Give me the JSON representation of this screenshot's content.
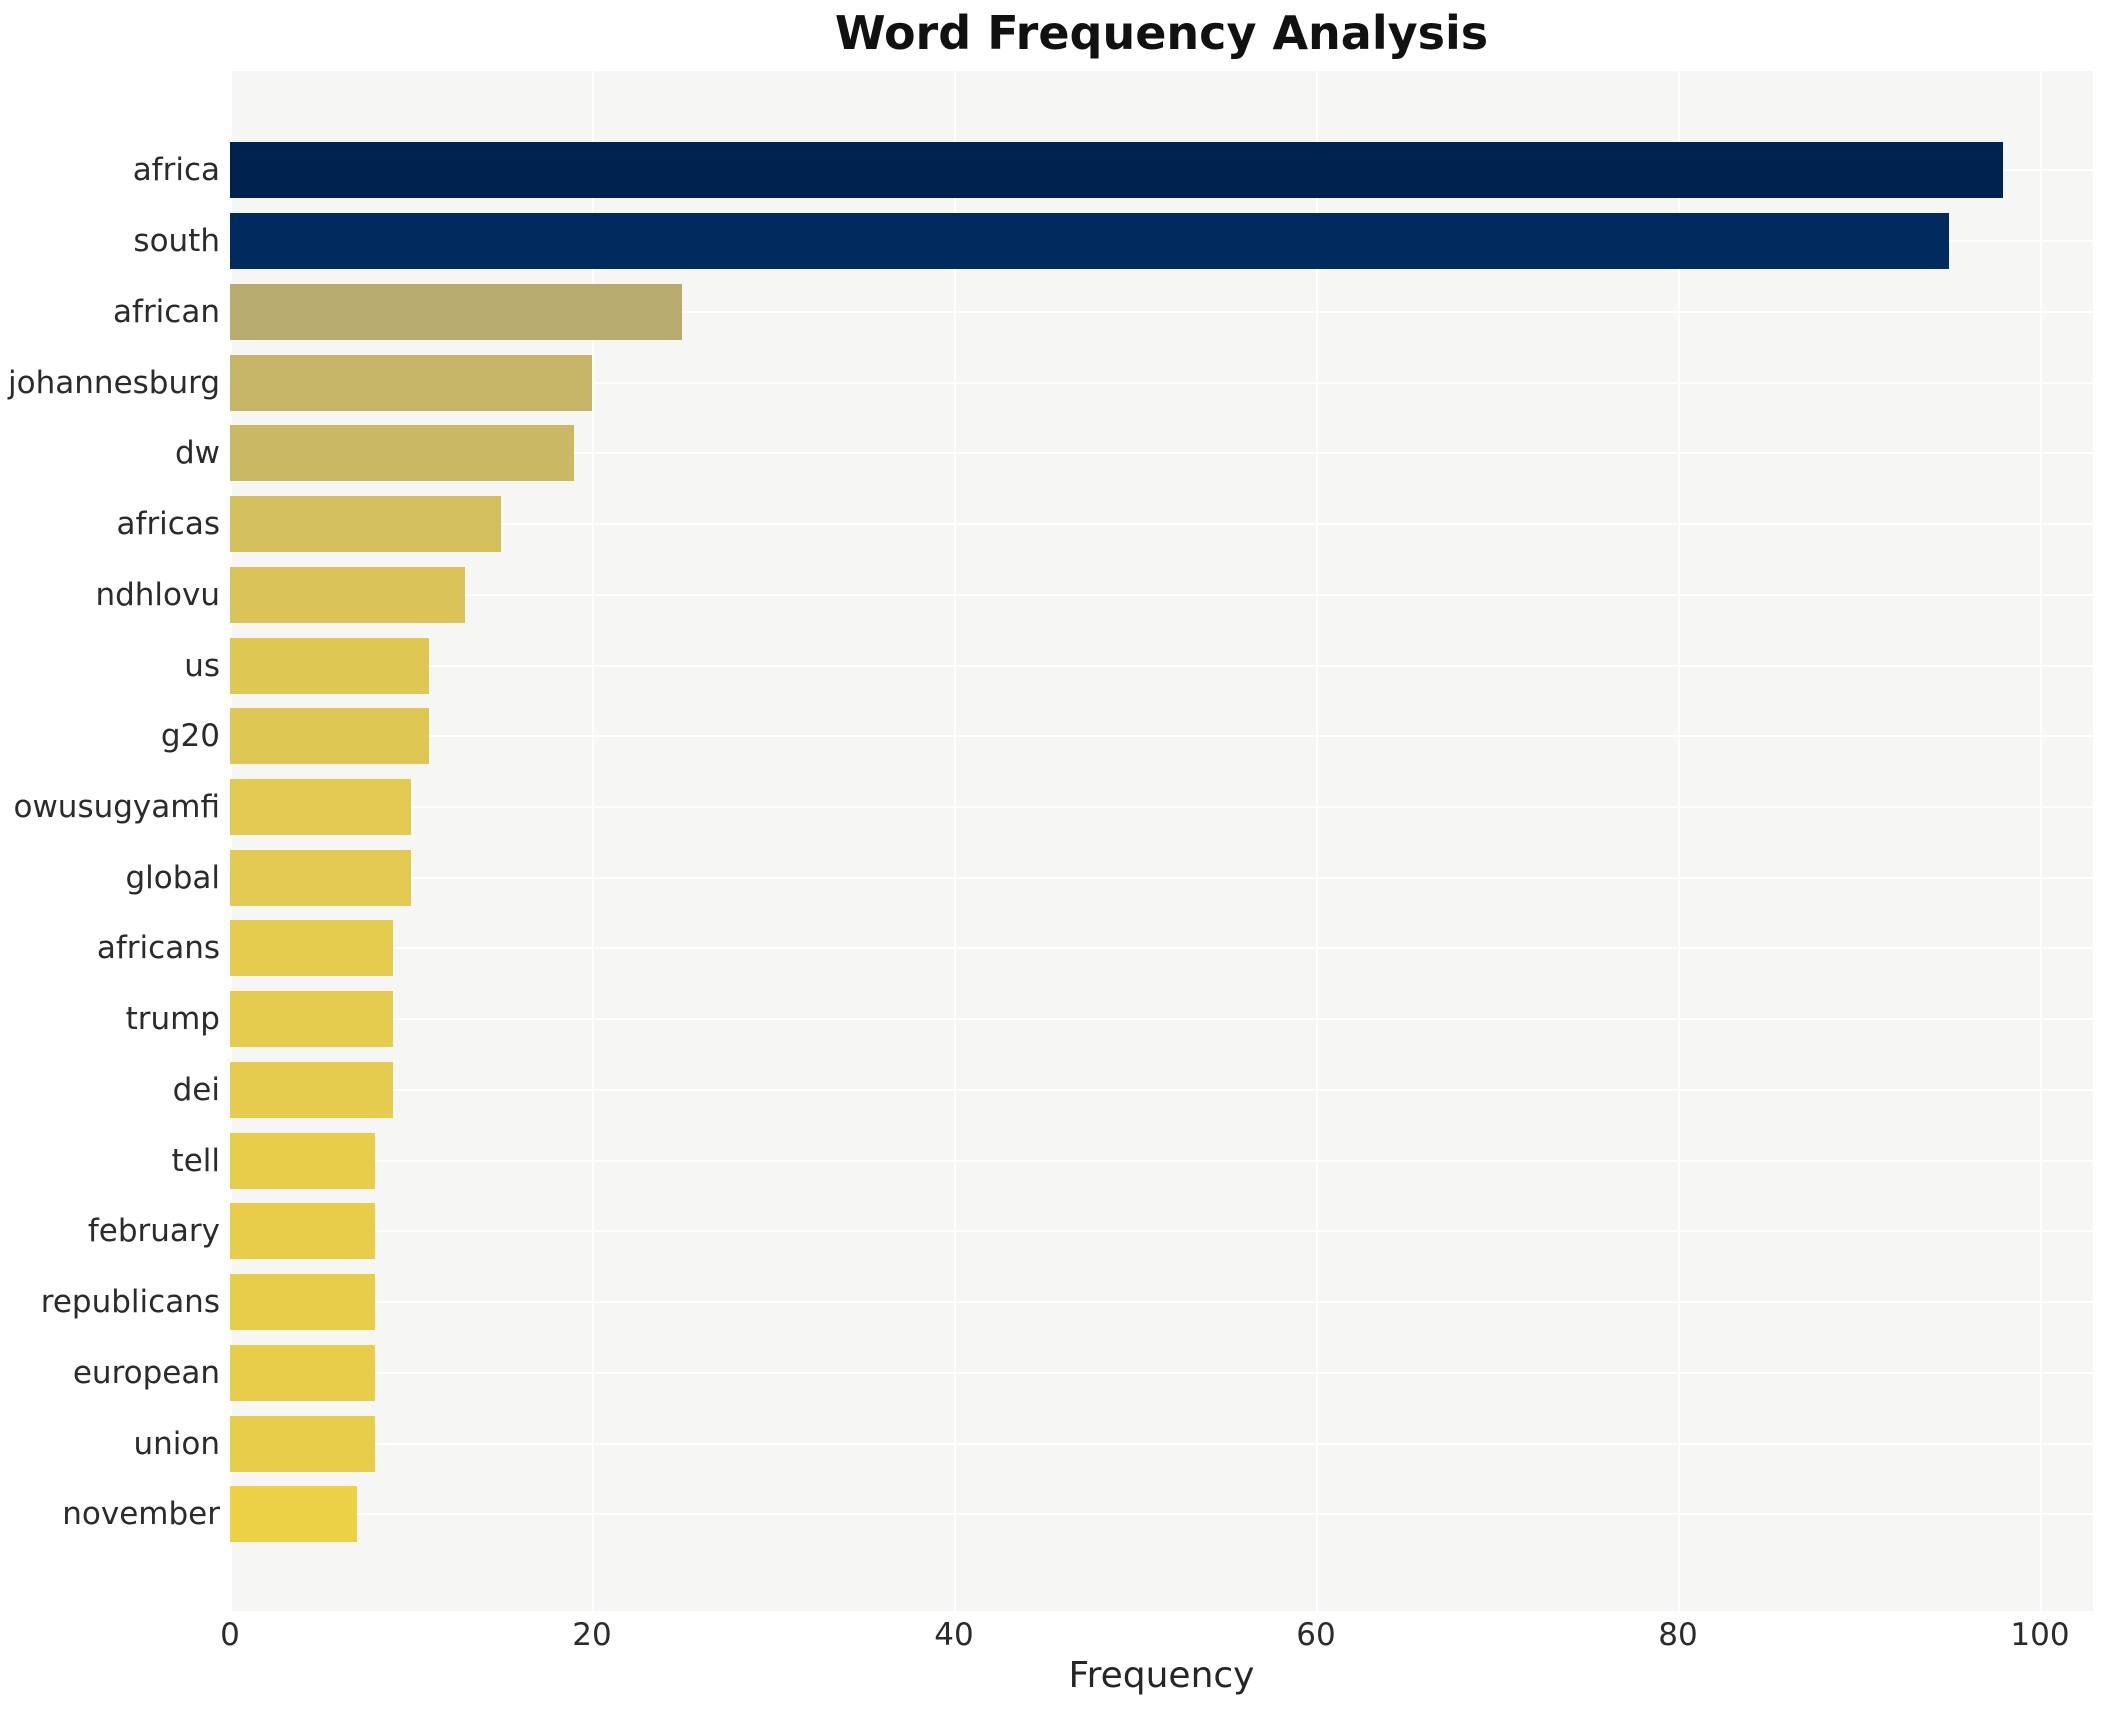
{
  "title": "Word Frequency Analysis",
  "xlabel": "Frequency",
  "chart_data": {
    "type": "bar",
    "orientation": "horizontal",
    "title": "Word Frequency Analysis",
    "xlabel": "Frequency",
    "ylabel": "",
    "categories": [
      "africa",
      "south",
      "african",
      "johannesburg",
      "dw",
      "africas",
      "ndhlovu",
      "us",
      "g20",
      "owusugyamfi",
      "global",
      "africans",
      "trump",
      "dei",
      "tell",
      "february",
      "republicans",
      "european",
      "union",
      "november"
    ],
    "values": [
      98,
      95,
      25,
      20,
      19,
      15,
      13,
      11,
      11,
      10,
      10,
      9,
      9,
      9,
      8,
      8,
      8,
      8,
      8,
      7
    ],
    "bar_colors": [
      "#00224e",
      "#012a5f",
      "#b7ab6e",
      "#c7b667",
      "#cab864",
      "#d4bf5d",
      "#dac358",
      "#dfc754",
      "#dfc754",
      "#e2c951",
      "#e2c951",
      "#e5cb4e",
      "#e5cb4e",
      "#e5cb4e",
      "#e8cd4b",
      "#e8cd4b",
      "#e8cd4b",
      "#e8cd4b",
      "#e8cd4b",
      "#ecd147"
    ],
    "colormap": "cividis (value-mapped, high=dark blue, low=yellow)",
    "xticks": [
      0,
      20,
      40,
      60,
      80,
      100
    ],
    "xlim": [
      0,
      102.95
    ],
    "grid": true,
    "legend": false,
    "plot_background": "#f6f6f4",
    "grid_color": "#ffffff",
    "figure_background": "#ffffff"
  }
}
